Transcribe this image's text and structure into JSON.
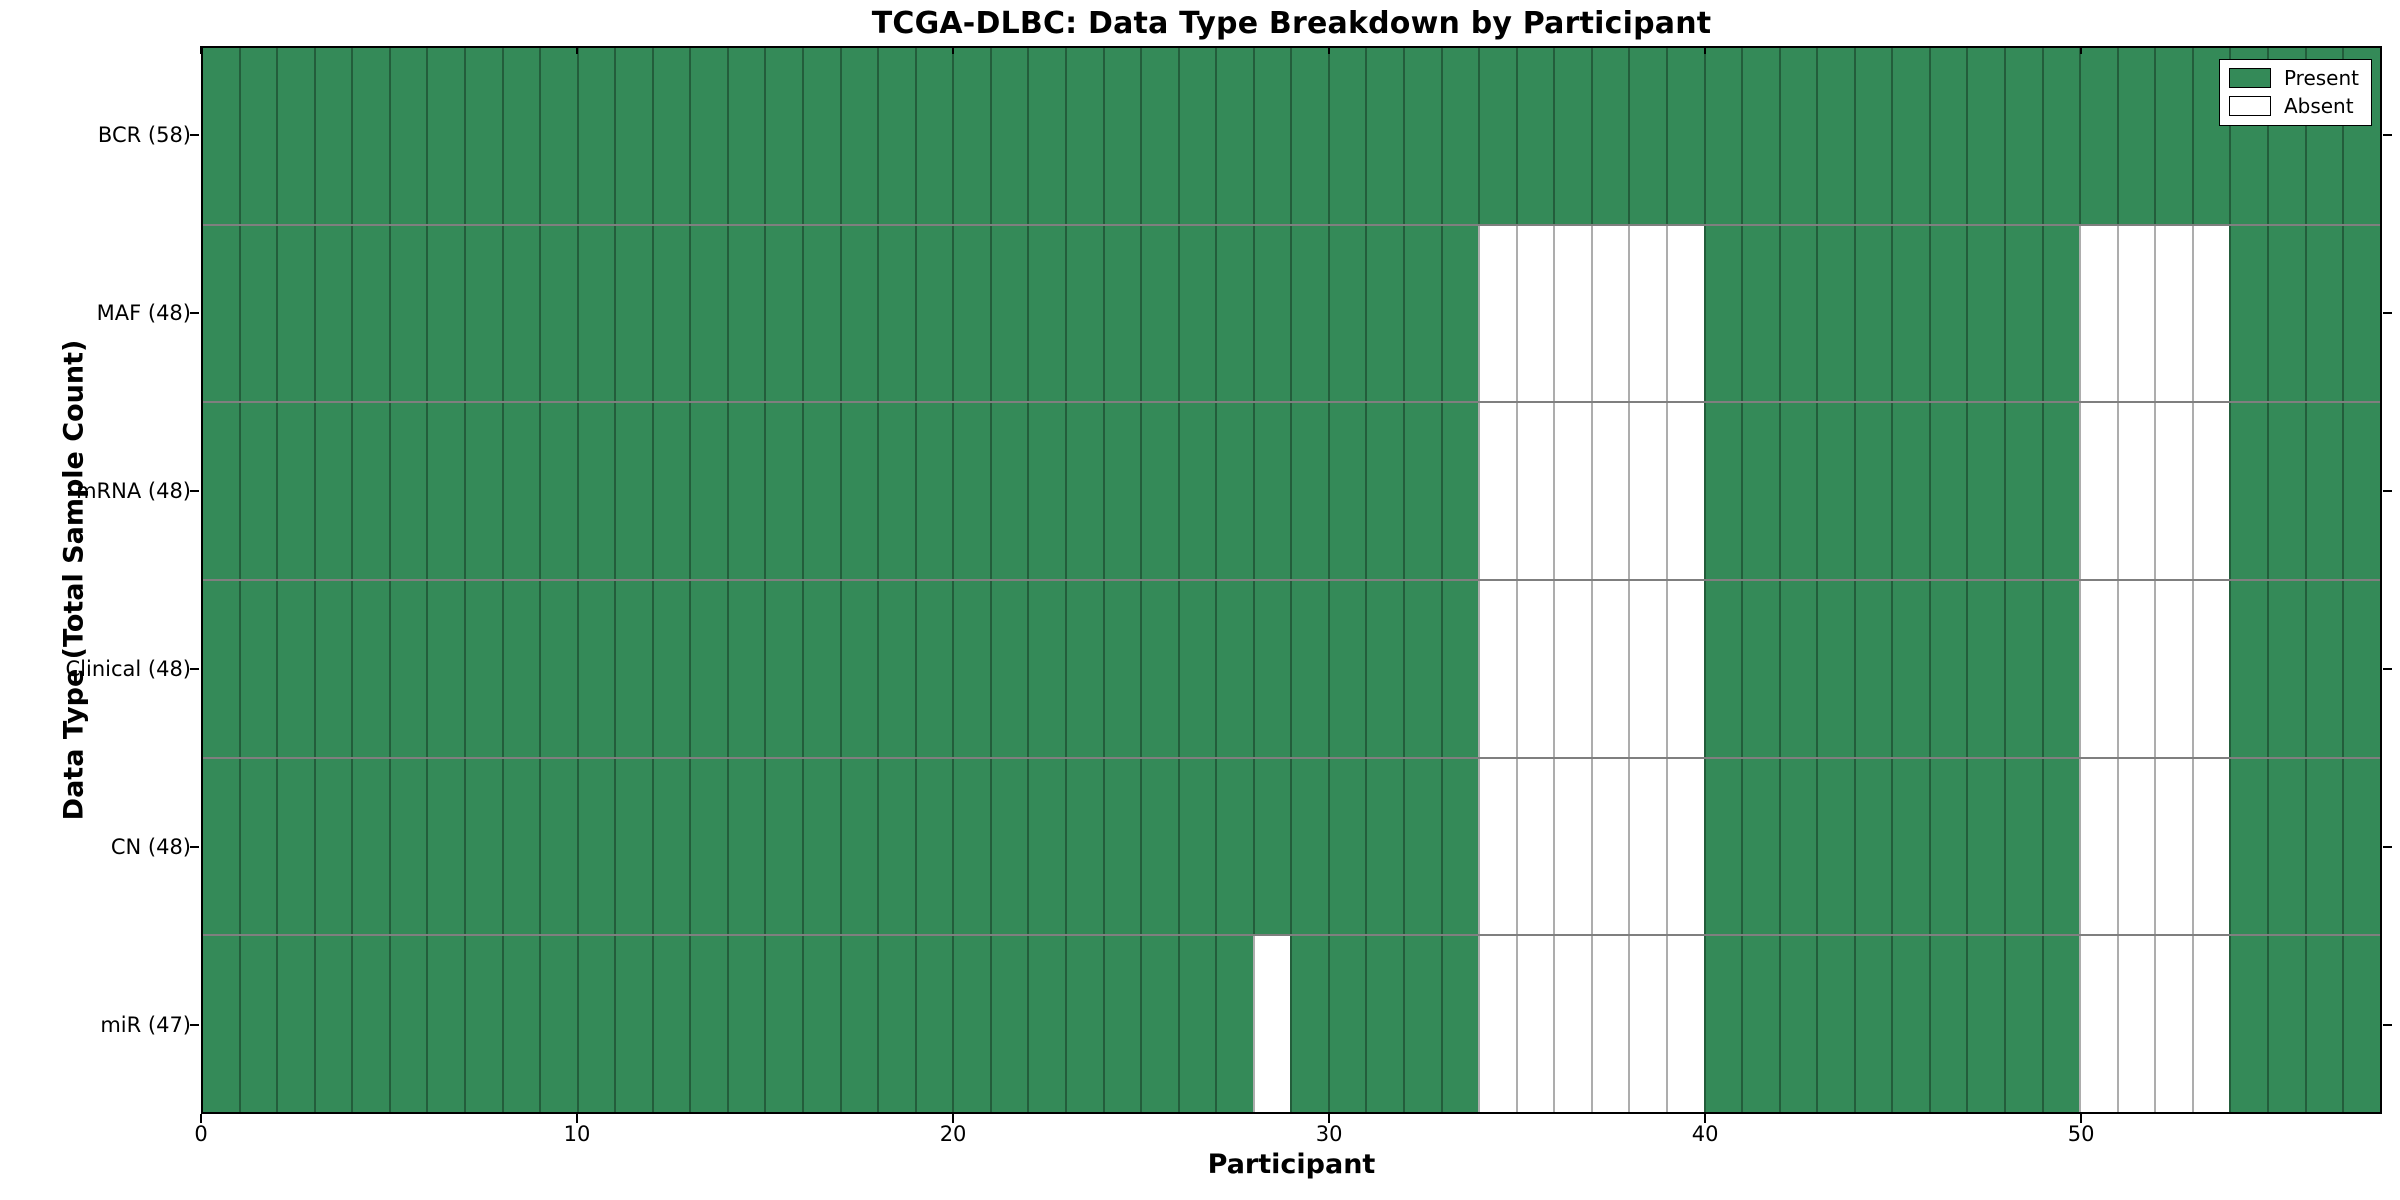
{
  "colors": {
    "present": "#348a58",
    "absent": "#ffffff",
    "axis": "#000000"
  },
  "chart_data": {
    "type": "heatmap",
    "title": "TCGA-DLBC: Data Type Breakdown by Participant",
    "xlabel": "Participant",
    "ylabel": "Data Type (Total Sample Count)",
    "n_participants": 58,
    "x_range": [
      0,
      58
    ],
    "x_ticks": [
      0,
      10,
      20,
      30,
      40,
      50
    ],
    "grid": true,
    "legend_position": "upper right",
    "legend": [
      {
        "label": "Present",
        "color": "#348a58"
      },
      {
        "label": "Absent",
        "color": "#ffffff"
      }
    ],
    "rows": [
      {
        "label": "BCR (58)",
        "name": "BCR",
        "total": 58,
        "absent_participants": []
      },
      {
        "label": "MAF (48)",
        "name": "MAF",
        "total": 48,
        "absent_participants": [
          34,
          35,
          36,
          37,
          38,
          39,
          50,
          51,
          52,
          53
        ]
      },
      {
        "label": "mRNA (48)",
        "name": "mRNA",
        "total": 48,
        "absent_participants": [
          34,
          35,
          36,
          37,
          38,
          39,
          50,
          51,
          52,
          53
        ]
      },
      {
        "label": "Clinical (48)",
        "name": "Clinical",
        "total": 48,
        "absent_participants": [
          34,
          35,
          36,
          37,
          38,
          39,
          50,
          51,
          52,
          53
        ]
      },
      {
        "label": "CN (48)",
        "name": "CN",
        "total": 48,
        "absent_participants": [
          34,
          35,
          36,
          37,
          38,
          39,
          50,
          51,
          52,
          53
        ]
      },
      {
        "label": "miR (47)",
        "name": "miR",
        "total": 47,
        "absent_participants": [
          28,
          34,
          35,
          36,
          37,
          38,
          39,
          50,
          51,
          52,
          53
        ]
      }
    ]
  }
}
